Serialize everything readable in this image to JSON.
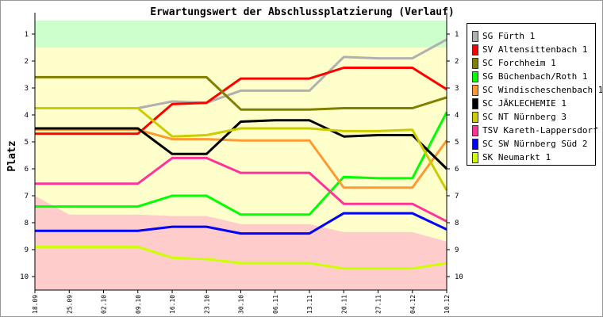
{
  "chart_data": {
    "type": "line",
    "title": "Erwartungswert der Abschlussplatzierung (Verlauf)",
    "xlabel": "",
    "ylabel": "Platz",
    "ylim": [
      10.5,
      0.5
    ],
    "yticks": [
      "1",
      "2",
      "3",
      "4",
      "5",
      "6",
      "7",
      "8",
      "9",
      "10"
    ],
    "x": [
      "18.09",
      "25.09",
      "02.10",
      "09.10",
      "16.10",
      "23.10",
      "30.10",
      "06.11",
      "13.11",
      "20.11",
      "27.11",
      "04.12",
      "10.12"
    ],
    "zones": {
      "promotion_until": 1.5,
      "relegation_from": [
        7.0,
        7.7,
        7.7,
        7.7,
        7.75,
        7.75,
        8.05,
        8.05,
        8.05,
        8.35,
        8.35,
        8.35,
        8.7
      ],
      "colors": {
        "promotion": "#ccffcc",
        "middle": "#ffffcc",
        "relegation": "#ffcccc"
      }
    },
    "legend_position": "right",
    "series": [
      {
        "name": "SG Fürth 1",
        "color": "#b0b0b0",
        "values": [
          3.75,
          3.75,
          3.75,
          3.75,
          3.5,
          3.55,
          3.1,
          3.1,
          3.1,
          1.85,
          1.9,
          1.9,
          1.2
        ]
      },
      {
        "name": "SV Altensittenbach 1",
        "color": "#ff0000",
        "values": [
          4.7,
          4.7,
          4.7,
          4.7,
          3.6,
          3.55,
          2.65,
          2.65,
          2.65,
          2.25,
          2.25,
          2.25,
          3.05
        ]
      },
      {
        "name": "SC Forchheim 1",
        "color": "#808000",
        "values": [
          2.6,
          2.6,
          2.6,
          2.6,
          2.6,
          2.6,
          3.8,
          3.8,
          3.8,
          3.75,
          3.75,
          3.75,
          3.35
        ]
      },
      {
        "name": "SG Büchenbach/Roth 1",
        "color": "#00ff00",
        "values": [
          7.4,
          7.4,
          7.4,
          7.4,
          7.0,
          7.0,
          7.7,
          7.7,
          7.7,
          6.3,
          6.35,
          6.35,
          3.9
        ]
      },
      {
        "name": "SC Windischeschenbach 1",
        "color": "#ff9933",
        "values": [
          4.55,
          4.55,
          4.55,
          4.55,
          4.9,
          4.9,
          4.95,
          4.95,
          4.95,
          6.7,
          6.7,
          6.7,
          4.95
        ]
      },
      {
        "name": "SC JÄKLECHEMIE 1",
        "color": "#000000",
        "values": [
          4.5,
          4.5,
          4.5,
          4.5,
          5.45,
          5.45,
          4.25,
          4.2,
          4.2,
          4.8,
          4.75,
          4.75,
          6.0
        ]
      },
      {
        "name": "SC NT Nürnberg 3",
        "color": "#cccc00",
        "values": [
          3.75,
          3.75,
          3.75,
          3.75,
          4.8,
          4.75,
          4.5,
          4.5,
          4.5,
          4.6,
          4.6,
          4.55,
          6.8
        ]
      },
      {
        "name": "TSV Kareth-Lappersdorf 2",
        "color": "#ff3399",
        "values": [
          6.55,
          6.55,
          6.55,
          6.55,
          5.6,
          5.6,
          6.15,
          6.15,
          6.15,
          7.3,
          7.3,
          7.3,
          7.95
        ]
      },
      {
        "name": "SC SW Nürnberg Süd 2",
        "color": "#0000ff",
        "values": [
          8.3,
          8.3,
          8.3,
          8.3,
          8.15,
          8.15,
          8.4,
          8.4,
          8.4,
          7.65,
          7.65,
          7.65,
          8.25
        ]
      },
      {
        "name": "SK Neumarkt 1",
        "color": "#ccff00",
        "values": [
          8.9,
          8.9,
          8.9,
          8.9,
          9.3,
          9.35,
          9.5,
          9.5,
          9.5,
          9.7,
          9.7,
          9.7,
          9.5
        ]
      }
    ]
  }
}
